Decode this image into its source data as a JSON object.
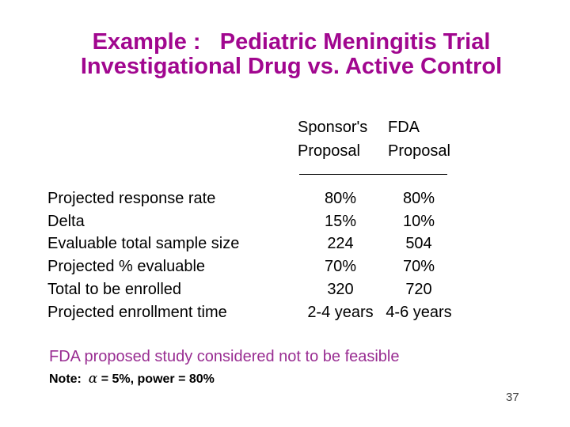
{
  "slide": {
    "title": {
      "line1": "Example :   Pediatric Meningitis Trial",
      "line2": "Investigational Drug vs. Active Control"
    },
    "table": {
      "col_headers": [
        {
          "line1": "Sponsor's",
          "line2": "Proposal"
        },
        {
          "line1": "FDA",
          "line2": "Proposal"
        }
      ],
      "rows": [
        {
          "label": "Projected response rate",
          "sponsor": "80%",
          "fda": "80%"
        },
        {
          "label": "Delta",
          "sponsor": "15%",
          "fda": "10%"
        },
        {
          "label": "Evaluable total sample size",
          "sponsor": "224",
          "fda": "504"
        },
        {
          "label": "Projected % evaluable",
          "sponsor": "70%",
          "fda": "70%"
        },
        {
          "label": "Total to be enrolled",
          "sponsor": "320",
          "fda": "720"
        },
        {
          "label": "Projected enrollment time",
          "sponsor": "2-4 years",
          "fda": "4-6 years"
        }
      ]
    },
    "conclusion": "FDA proposed study considered not to be feasible",
    "note": {
      "prefix": "Note:  ",
      "alpha": "α",
      "rest": " = 5%, power = 80%"
    },
    "page_number": "37",
    "colors": {
      "title_magenta": "#a1078f",
      "conclusion_magenta": "#992d92",
      "body_text": "#000000",
      "page_number_gray": "#444444",
      "background": "#ffffff"
    }
  }
}
